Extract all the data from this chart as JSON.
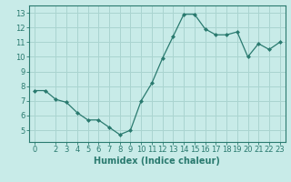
{
  "x": [
    0,
    1,
    2,
    3,
    4,
    5,
    6,
    7,
    8,
    9,
    10,
    11,
    12,
    13,
    14,
    15,
    16,
    17,
    18,
    19,
    20,
    21,
    22,
    23
  ],
  "y": [
    7.7,
    7.7,
    7.1,
    6.9,
    6.2,
    5.7,
    5.7,
    5.2,
    4.7,
    5.0,
    7.0,
    8.2,
    9.9,
    11.4,
    12.9,
    12.9,
    11.9,
    11.5,
    11.5,
    11.7,
    10.0,
    10.9,
    10.5,
    11.0
  ],
  "line_color": "#2a7a6f",
  "marker": "D",
  "marker_size": 2.0,
  "bg_color": "#c8ebe8",
  "grid_color": "#aad4d0",
  "xlabel": "Humidex (Indice chaleur)",
  "ylabel": "",
  "title": "",
  "xlim": [
    -0.5,
    23.5
  ],
  "ylim": [
    4.2,
    13.5
  ],
  "yticks": [
    5,
    6,
    7,
    8,
    9,
    10,
    11,
    12,
    13
  ],
  "xticks": [
    0,
    2,
    3,
    4,
    5,
    6,
    7,
    8,
    9,
    10,
    11,
    12,
    13,
    14,
    15,
    16,
    17,
    18,
    19,
    20,
    21,
    22,
    23
  ],
  "xtick_labels": [
    "0",
    "2",
    "3",
    "4",
    "5",
    "6",
    "7",
    "8",
    "9",
    "10",
    "11",
    "12",
    "13",
    "14",
    "15",
    "16",
    "17",
    "18",
    "19",
    "20",
    "21",
    "22",
    "23"
  ],
  "tick_color": "#2a7a6f",
  "axis_color": "#2a7a6f",
  "font_color": "#2a7a6f",
  "xlabel_fontsize": 7,
  "tick_fontsize": 6
}
